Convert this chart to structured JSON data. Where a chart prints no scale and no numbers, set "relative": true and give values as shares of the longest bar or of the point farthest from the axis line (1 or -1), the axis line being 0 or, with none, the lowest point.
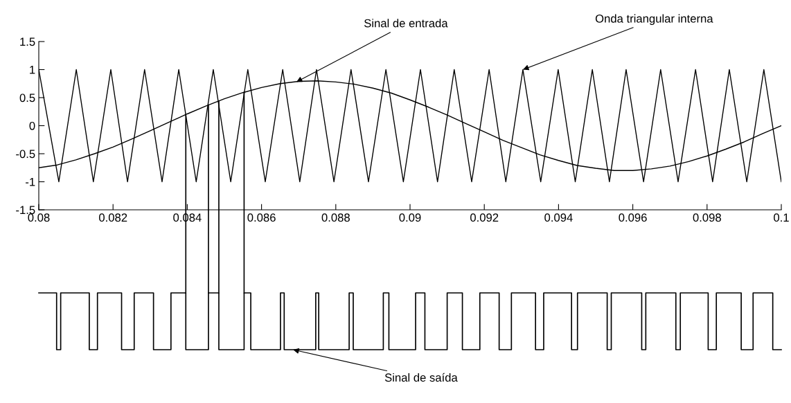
{
  "chart_data": [
    {
      "type": "line",
      "xlim": [
        0.08,
        0.1
      ],
      "ylim": [
        -1.5,
        1.5
      ],
      "xticks": [
        0.08,
        0.082,
        0.084,
        0.086,
        0.088,
        0.09,
        0.092,
        0.094,
        0.096,
        0.098,
        0.1
      ],
      "yticks": [
        -1.5,
        -1,
        -0.5,
        0,
        0.5,
        1,
        1.5
      ],
      "grid": false,
      "legend": false,
      "series": [
        {
          "color": "#000000",
          "x": [
            0.08,
            0.08054,
            0.08101,
            0.08147,
            0.08194,
            0.08239,
            0.08285,
            0.08332,
            0.08377,
            0.08424,
            0.0847,
            0.08517,
            0.08563,
            0.0861,
            0.08657,
            0.08703,
            0.08748,
            0.08795,
            0.08841,
            0.08888,
            0.08935,
            0.08982,
            0.09028,
            0.09074,
            0.09119,
            0.09166,
            0.09213,
            0.09258,
            0.09304,
            0.09352,
            0.09399,
            0.09445,
            0.09491,
            0.09537,
            0.09582,
            0.09629,
            0.09675,
            0.09722,
            0.09769,
            0.09815,
            0.0986,
            0.09907,
            0.09953,
            0.1
          ],
          "values": [
            1,
            -1,
            1,
            -1,
            1,
            -1,
            1,
            -1,
            1,
            -1,
            1,
            -1,
            1,
            -1,
            1,
            -1,
            1,
            -1,
            1,
            -1,
            1,
            -1,
            1,
            -1,
            1,
            -1,
            1,
            -1,
            1,
            -1,
            1,
            -1,
            1,
            -1,
            1,
            -1,
            1,
            -1,
            1,
            -1,
            1,
            -1,
            1,
            -1
          ]
        },
        {
          "color": "#000000",
          "x": [
            0.08,
            0.0805,
            0.081,
            0.0815,
            0.082,
            0.0825,
            0.083,
            0.0835,
            0.084,
            0.0845,
            0.085,
            0.0855,
            0.086,
            0.0865,
            0.087,
            0.0875,
            0.088,
            0.0885,
            0.089,
            0.0895,
            0.09,
            0.0905,
            0.091,
            0.0915,
            0.092,
            0.0925,
            0.093,
            0.0935,
            0.094,
            0.0945,
            0.095,
            0.0955,
            0.096,
            0.0965,
            0.097,
            0.0975,
            0.098,
            0.0985,
            0.099,
            0.0995,
            0.1
          ],
          "values": [
            -0.75,
            -0.7,
            -0.61,
            -0.5,
            -0.38,
            -0.24,
            -0.09,
            0.06,
            0.21,
            0.35,
            0.48,
            0.59,
            0.68,
            0.75,
            0.79,
            0.8,
            0.78,
            0.74,
            0.67,
            0.58,
            0.46,
            0.33,
            0.19,
            0.04,
            -0.11,
            -0.26,
            -0.39,
            -0.52,
            -0.62,
            -0.71,
            -0.76,
            -0.8,
            -0.8,
            -0.77,
            -0.72,
            -0.64,
            -0.54,
            -0.42,
            -0.29,
            -0.14,
            0
          ]
        }
      ],
      "ref_lines": [
        {
          "axis": "x",
          "value": 0.08396,
          "color": "#000000"
        },
        {
          "axis": "x",
          "value": 0.08457,
          "color": "#000000"
        },
        {
          "axis": "x",
          "value": 0.08485,
          "color": "#000000"
        },
        {
          "axis": "x",
          "value": 0.08553,
          "color": "#000000"
        }
      ],
      "annotations": [
        {
          "text": "Sinal de entrada",
          "x": 0.08694,
          "y": 0.78
        },
        {
          "text": "Onda triangular interna",
          "x": 0.09304,
          "y": 1
        }
      ]
    },
    {
      "type": "step",
      "relative": true,
      "xlim": [
        0.08,
        0.1
      ],
      "tick_labels": false,
      "grid": false,
      "legend": false,
      "series": [
        {
          "color": "#000000",
          "x": [
            0.08,
            0.08048,
            0.08059,
            0.08136,
            0.08158,
            0.08223,
            0.08257,
            0.08309,
            0.08356,
            0.08396,
            0.08457,
            0.08485,
            0.08553,
            0.08571,
            0.08651,
            0.08661,
            0.08746,
            0.08754,
            0.08836,
            0.08847,
            0.08928,
            0.08943,
            0.09015,
            0.0904,
            0.091,
            0.09141,
            0.09188,
            0.0924,
            0.09273,
            0.09338,
            0.0936,
            0.09435,
            0.09451,
            0.09531,
            0.09542,
            0.09624,
            0.09635,
            0.09716,
            0.09728,
            0.09803,
            0.09825,
            0.09892,
            0.09924,
            0.09977,
            0.1
          ],
          "values": [
            1,
            0,
            1,
            0,
            1,
            0,
            1,
            0,
            1,
            0,
            1,
            0,
            1,
            0,
            1,
            0,
            1,
            0,
            1,
            0,
            1,
            0,
            1,
            0,
            1,
            0,
            1,
            0,
            1,
            0,
            1,
            0,
            1,
            0,
            1,
            0,
            1,
            0,
            1,
            0,
            1,
            0,
            1,
            0,
            0
          ]
        }
      ],
      "annotations": [
        {
          "text": "Sinal de saída",
          "x": 0.08685,
          "y": 0
        }
      ]
    }
  ]
}
